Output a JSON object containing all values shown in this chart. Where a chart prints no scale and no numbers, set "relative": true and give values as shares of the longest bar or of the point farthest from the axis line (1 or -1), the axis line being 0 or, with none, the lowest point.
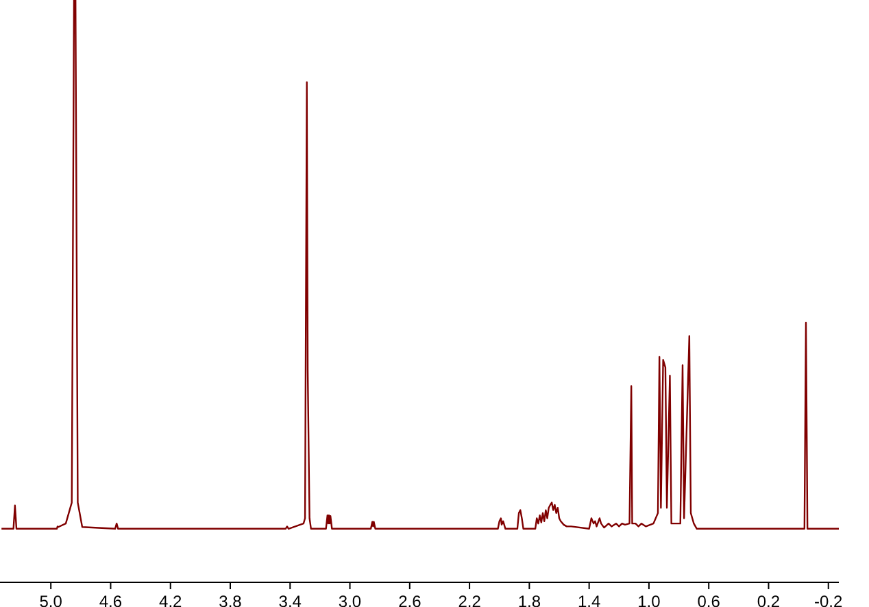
{
  "chart_data": {
    "type": "line",
    "relative": true,
    "xlim": [
      5.34,
      -0.27
    ],
    "xticks": [
      {
        "value": 5,
        "label": "5.0"
      },
      4.6,
      4.2,
      3.8,
      3.4,
      {
        "value": 3,
        "label": "3.0"
      },
      2.6,
      2.2,
      1.8,
      1.4,
      {
        "value": 1,
        "label": "1.0"
      },
      0.6,
      0.2,
      -0.2
    ],
    "line_style": "solid",
    "series": [
      {
        "color": "#800000",
        "x": [
          5.33,
          5.25,
          5.24,
          5.23,
          4.96,
          4.955,
          4.95,
          4.9,
          4.86,
          4.845,
          4.835,
          4.82,
          4.79,
          4.57,
          4.56,
          4.55,
          3.43,
          3.42,
          3.41,
          3.31,
          3.3,
          3.288,
          3.282,
          3.27,
          3.26,
          3.16,
          3.15,
          3.145,
          3.14,
          3.135,
          3.13,
          3.12,
          2.86,
          2.85,
          2.845,
          2.84,
          2.83,
          2.01,
          2.0,
          1.99,
          1.985,
          1.975,
          1.96,
          1.88,
          1.87,
          1.86,
          1.85,
          1.84,
          1.76,
          1.75,
          1.74,
          1.73,
          1.72,
          1.71,
          1.7,
          1.69,
          1.68,
          1.67,
          1.66,
          1.65,
          1.64,
          1.63,
          1.62,
          1.61,
          1.6,
          1.59,
          1.57,
          1.55,
          1.52,
          1.4,
          1.385,
          1.37,
          1.36,
          1.35,
          1.33,
          1.32,
          1.3,
          1.27,
          1.25,
          1.22,
          1.2,
          1.18,
          1.16,
          1.13,
          1.118,
          1.112,
          1.09,
          1.07,
          1.05,
          1.02,
          0.97,
          0.94,
          0.93,
          0.92,
          0.905,
          0.89,
          0.88,
          0.86,
          0.85,
          0.79,
          0.775,
          0.765,
          0.73,
          0.72,
          0.71,
          0.7,
          0.68,
          -0.04,
          -0.05,
          -0.06,
          -0.27
        ],
        "values": [
          0.092,
          0.092,
          0.132,
          0.092,
          0.092,
          0.096,
          0.095,
          0.101,
          0.137,
          1,
          1,
          0.137,
          0.095,
          0.092,
          0.101,
          0.092,
          0.092,
          0.096,
          0.092,
          0.101,
          0.11,
          0.859,
          0.364,
          0.11,
          0.092,
          0.092,
          0.115,
          0.101,
          0.115,
          0.101,
          0.114,
          0.092,
          0.092,
          0.104,
          0.096,
          0.104,
          0.092,
          0.092,
          0.105,
          0.11,
          0.099,
          0.105,
          0.092,
          0.092,
          0.119,
          0.124,
          0.11,
          0.092,
          0.092,
          0.11,
          0.101,
          0.115,
          0.103,
          0.119,
          0.105,
          0.124,
          0.11,
          0.128,
          0.133,
          0.137,
          0.124,
          0.133,
          0.119,
          0.128,
          0.11,
          0.105,
          0.099,
          0.096,
          0.096,
          0.092,
          0.11,
          0.101,
          0.105,
          0.096,
          0.11,
          0.101,
          0.094,
          0.101,
          0.096,
          0.101,
          0.096,
          0.101,
          0.099,
          0.101,
          0.337,
          0.101,
          0.101,
          0.096,
          0.101,
          0.096,
          0.101,
          0.119,
          0.387,
          0.128,
          0.382,
          0.369,
          0.128,
          0.355,
          0.101,
          0.101,
          0.373,
          0.11,
          0.423,
          0.119,
          0.11,
          0.101,
          0.092,
          0.092,
          0.446,
          0.092,
          0.092
        ]
      }
    ]
  }
}
